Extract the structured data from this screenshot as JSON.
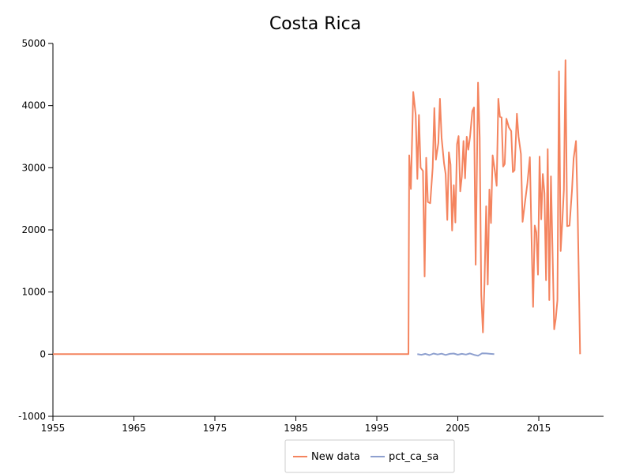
{
  "chart_data": {
    "type": "line",
    "title": "Costa Rica",
    "xlabel": "",
    "ylabel": "",
    "xlim": [
      1955,
      2023
    ],
    "ylim": [
      -1000,
      5000
    ],
    "x_ticks": [
      "1955",
      "1965",
      "1975",
      "1985",
      "1995",
      "2005",
      "2015"
    ],
    "y_ticks": [
      "-1000",
      "0",
      "1000",
      "2000",
      "3000",
      "4000",
      "5000"
    ],
    "x_tick_values": [
      1955,
      1965,
      1975,
      1985,
      1995,
      2005,
      2015
    ],
    "y_tick_values": [
      -1000,
      0,
      1000,
      2000,
      3000,
      4000,
      5000
    ],
    "grid": false,
    "legend_position": "bottom",
    "series": [
      {
        "name": "New data",
        "color": "#f4845f",
        "points": [
          [
            1955,
            0
          ],
          [
            1998.9,
            0
          ],
          [
            1999.0,
            3200
          ],
          [
            1999.2,
            2660
          ],
          [
            1999.5,
            4220
          ],
          [
            1999.8,
            3850
          ],
          [
            2000.0,
            2820
          ],
          [
            2000.2,
            3850
          ],
          [
            2000.4,
            3000
          ],
          [
            2000.7,
            2950
          ],
          [
            2000.9,
            1250
          ],
          [
            2001.1,
            3160
          ],
          [
            2001.3,
            2450
          ],
          [
            2001.6,
            2430
          ],
          [
            2001.9,
            3000
          ],
          [
            2002.1,
            3960
          ],
          [
            2002.3,
            3130
          ],
          [
            2002.6,
            3400
          ],
          [
            2002.8,
            4110
          ],
          [
            2003.0,
            3480
          ],
          [
            2003.3,
            3070
          ],
          [
            2003.5,
            2900
          ],
          [
            2003.7,
            2160
          ],
          [
            2003.9,
            3250
          ],
          [
            2004.1,
            3050
          ],
          [
            2004.3,
            1990
          ],
          [
            2004.5,
            2720
          ],
          [
            2004.7,
            2120
          ],
          [
            2004.9,
            3380
          ],
          [
            2005.1,
            3510
          ],
          [
            2005.3,
            2620
          ],
          [
            2005.5,
            2860
          ],
          [
            2005.7,
            3430
          ],
          [
            2005.9,
            2830
          ],
          [
            2006.1,
            3500
          ],
          [
            2006.3,
            3290
          ],
          [
            2006.5,
            3490
          ],
          [
            2006.8,
            3910
          ],
          [
            2007.0,
            3970
          ],
          [
            2007.2,
            1440
          ],
          [
            2007.5,
            4370
          ],
          [
            2007.7,
            3490
          ],
          [
            2007.9,
            950
          ],
          [
            2008.1,
            350
          ],
          [
            2008.3,
            1150
          ],
          [
            2008.5,
            2380
          ],
          [
            2008.7,
            1120
          ],
          [
            2008.9,
            2650
          ],
          [
            2009.1,
            2110
          ],
          [
            2009.3,
            3200
          ],
          [
            2009.6,
            2930
          ],
          [
            2009.8,
            2710
          ],
          [
            2010.0,
            4110
          ],
          [
            2010.2,
            3820
          ],
          [
            2010.4,
            3810
          ],
          [
            2010.6,
            3020
          ],
          [
            2010.8,
            3060
          ],
          [
            2011.0,
            3790
          ],
          [
            2011.3,
            3650
          ],
          [
            2011.6,
            3590
          ],
          [
            2011.8,
            2930
          ],
          [
            2012.0,
            2960
          ],
          [
            2012.3,
            3870
          ],
          [
            2012.5,
            3500
          ],
          [
            2012.8,
            3220
          ],
          [
            2013.0,
            2130
          ],
          [
            2013.3,
            2450
          ],
          [
            2013.6,
            2750
          ],
          [
            2013.9,
            3170
          ],
          [
            2014.1,
            1890
          ],
          [
            2014.3,
            760
          ],
          [
            2014.5,
            2070
          ],
          [
            2014.7,
            1960
          ],
          [
            2014.9,
            1280
          ],
          [
            2015.1,
            3180
          ],
          [
            2015.3,
            2170
          ],
          [
            2015.5,
            2900
          ],
          [
            2015.7,
            2590
          ],
          [
            2015.9,
            1190
          ],
          [
            2016.1,
            3300
          ],
          [
            2016.3,
            870
          ],
          [
            2016.5,
            2860
          ],
          [
            2016.7,
            1660
          ],
          [
            2016.9,
            400
          ],
          [
            2017.1,
            570
          ],
          [
            2017.3,
            870
          ],
          [
            2017.5,
            4550
          ],
          [
            2017.7,
            1660
          ],
          [
            2017.9,
            2110
          ],
          [
            2018.1,
            2650
          ],
          [
            2018.3,
            4730
          ],
          [
            2018.5,
            2060
          ],
          [
            2018.8,
            2070
          ],
          [
            2019.1,
            2630
          ],
          [
            2019.3,
            3150
          ],
          [
            2019.6,
            3430
          ],
          [
            2019.8,
            2320
          ],
          [
            2020.1,
            0
          ]
        ]
      },
      {
        "name": "pct_ca_sa",
        "color": "#8ea0cf",
        "points": [
          [
            2000.0,
            0
          ],
          [
            2000.5,
            -10
          ],
          [
            2001.0,
            5
          ],
          [
            2001.5,
            -15
          ],
          [
            2002.0,
            10
          ],
          [
            2002.5,
            -5
          ],
          [
            2003.0,
            8
          ],
          [
            2003.5,
            -12
          ],
          [
            2004.0,
            6
          ],
          [
            2004.5,
            10
          ],
          [
            2005.0,
            -8
          ],
          [
            2005.5,
            5
          ],
          [
            2006.0,
            -6
          ],
          [
            2006.5,
            12
          ],
          [
            2007.0,
            -10
          ],
          [
            2007.5,
            -25
          ],
          [
            2008.0,
            15
          ],
          [
            2008.5,
            12
          ],
          [
            2009.0,
            5
          ],
          [
            2009.5,
            0
          ]
        ]
      }
    ]
  }
}
